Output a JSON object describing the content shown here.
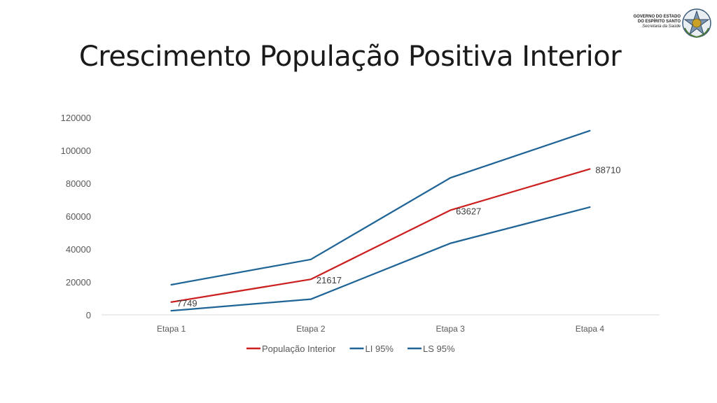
{
  "slide": {
    "title": "Crescimento População Positiva Interior"
  },
  "logo": {
    "line1": "GOVERNO DO ESTADO",
    "line2": "DO ESPÍRITO SANTO",
    "line3": "Secretaria da Saúde"
  },
  "chart_data": {
    "type": "line",
    "title": "",
    "xlabel": "",
    "ylabel": "",
    "categories": [
      "Etapa 1",
      "Etapa 2",
      "Etapa 3",
      "Etapa 4"
    ],
    "ylim": [
      0,
      120000
    ],
    "yticks": [
      "0",
      "20000",
      "40000",
      "60000",
      "80000",
      "100000",
      "120000"
    ],
    "grid": false,
    "legend_position": "bottom",
    "series": [
      {
        "name": "População Interior",
        "color": "#cc1f1f",
        "values": [
          7749,
          21617,
          63627,
          88710
        ],
        "labels": [
          "7749",
          "21617",
          "63627",
          "88710"
        ]
      },
      {
        "name": "LI 95%",
        "color": "#1f6496",
        "values": [
          2500,
          9500,
          43500,
          65500
        ]
      },
      {
        "name": "LS 95%",
        "color": "#1f6496",
        "values": [
          18300,
          33700,
          83300,
          112000
        ]
      }
    ]
  }
}
